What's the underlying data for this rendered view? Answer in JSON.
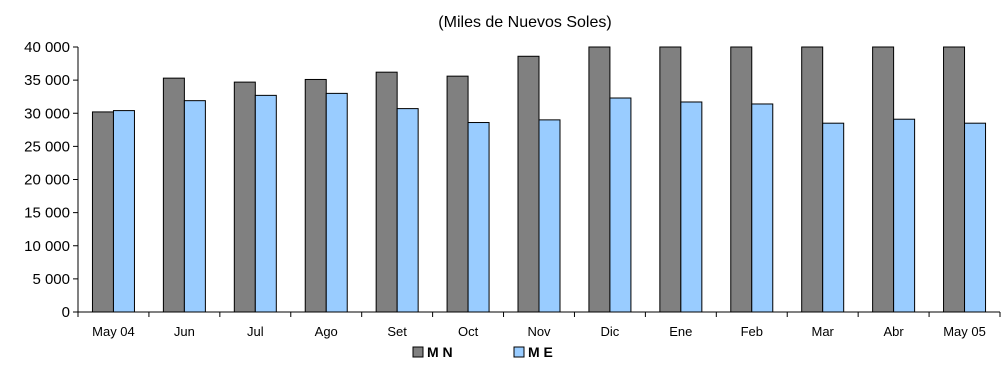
{
  "chart_data": {
    "type": "bar",
    "title": "(Miles de Nuevos Soles)",
    "categories": [
      "May 04",
      "Jun",
      "Jul",
      "Ago",
      "Set",
      "Oct",
      "Nov",
      "Dic",
      "Ene",
      "Feb",
      "Mar",
      "Abr",
      "May 05"
    ],
    "series": [
      {
        "name": "M N",
        "color": "#808080",
        "values": [
          30200,
          35300,
          34700,
          35100,
          36200,
          35600,
          38600,
          40000,
          40000,
          40000,
          40000,
          40000,
          40000
        ]
      },
      {
        "name": "M E",
        "color": "#99ccff",
        "values": [
          30400,
          31900,
          32700,
          33000,
          30700,
          28600,
          29000,
          32300,
          31700,
          31400,
          28500,
          29100,
          28500
        ]
      }
    ],
    "ylim": [
      0,
      40000
    ],
    "yticks": [
      0,
      5000,
      10000,
      15000,
      20000,
      25000,
      30000,
      35000,
      40000
    ],
    "ytick_labels": [
      "0",
      "5 000",
      "10 000",
      "15 000",
      "20 000",
      "25 000",
      "30 000",
      "35 000",
      "40 000"
    ],
    "legend_position": "bottom",
    "grid": false
  }
}
